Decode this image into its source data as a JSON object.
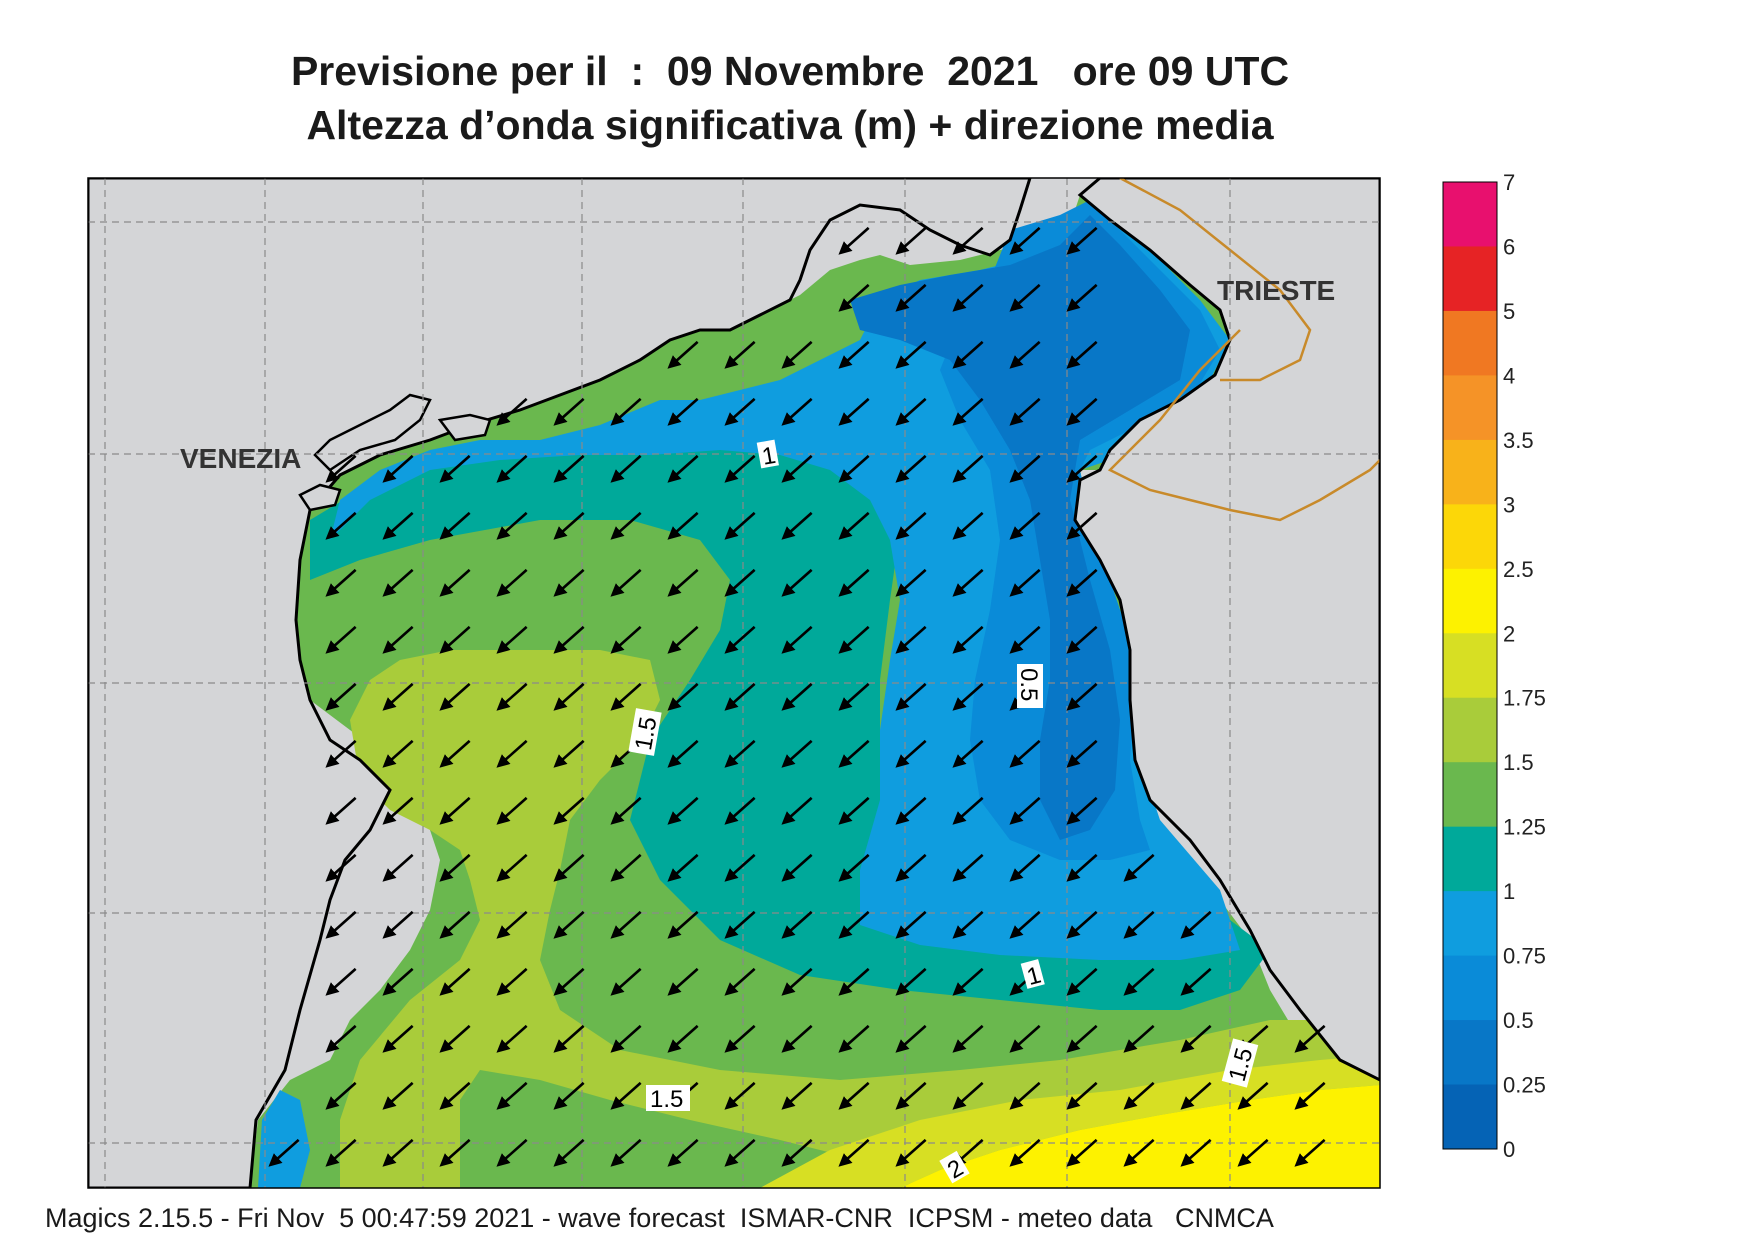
{
  "title": {
    "line1": "Previsione per il  :  09 Novembre  2021   ore 09 UTC",
    "line2": "Altezza d’onda significativa (m) + direzione media"
  },
  "city_labels": {
    "venezia": "VENEZIA",
    "trieste": "TRIESTE"
  },
  "contour_labels": [
    "1",
    "1.5",
    "0.5",
    "1",
    "1.5",
    "1.5",
    "2"
  ],
  "colorbar": {
    "levels": [
      "7",
      "6",
      "5",
      "4",
      "3.5",
      "3",
      "2.5",
      "2",
      "1.75",
      "1.5",
      "1.25",
      "1",
      "0.75",
      "0.5",
      "0.25",
      "0"
    ],
    "colors": [
      "#e8106e",
      "#e62325",
      "#f07822",
      "#f59327",
      "#f8b21a",
      "#fcd708",
      "#fdf200",
      "#d7df23",
      "#a9cc3a",
      "#6ab84e",
      "#00a99a",
      "#0f9ddf",
      "#0a8bd8",
      "#0877c7",
      "#0563b5"
    ]
  },
  "colors": {
    "land": "#d4d5d7",
    "coast": "#000000",
    "border": "#c88a2a",
    "arrow": "#000000"
  },
  "wave_direction": "from NE (arrows pointing SW)",
  "footer": "Magics 2.15.5 - Fri Nov  5 00:47:59 2021 - wave forecast  ISMAR-CNR  ICPSM - meteo data   CNMCA"
}
